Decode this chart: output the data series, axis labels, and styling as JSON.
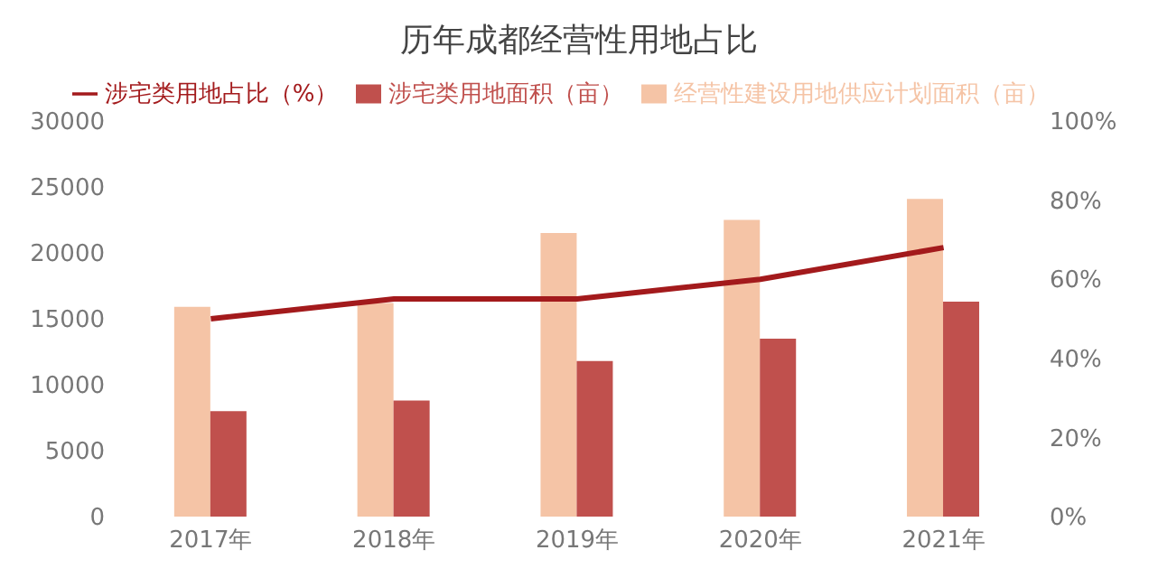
{
  "chart_data": {
    "type": "bar",
    "title": "历年成都经营性用地占比",
    "categories": [
      "2017年",
      "2018年",
      "2019年",
      "2020年",
      "2021年"
    ],
    "series": [
      {
        "name": "经营性建设用地供应计划面积（亩）",
        "color": "#f5c4a6",
        "values": [
          15900,
          16200,
          21500,
          22500,
          24100
        ]
      },
      {
        "name": "涉宅类用地面积（亩）",
        "color": "#c0504d",
        "values": [
          8000,
          8800,
          11800,
          13500,
          16300
        ]
      },
      {
        "name": "涉宅类用地占比（%）",
        "color": "#a31a1c",
        "type": "line",
        "axis": "y2",
        "values": [
          50,
          55,
          55,
          60,
          68
        ]
      }
    ],
    "ylim": [
      0,
      30000
    ],
    "yticks": [
      0,
      5000,
      10000,
      15000,
      20000,
      25000,
      30000
    ],
    "y2lim": [
      0,
      100
    ],
    "y2ticks": [
      {
        "value": 0,
        "label": "0%"
      },
      {
        "value": 20,
        "label": "20%"
      },
      {
        "value": 40,
        "label": "40%"
      },
      {
        "value": 60,
        "label": "60%"
      },
      {
        "value": 80,
        "label": "80%"
      },
      {
        "value": 100,
        "label": "100%"
      }
    ],
    "grid": false,
    "legend": "top",
    "marker": "none"
  }
}
